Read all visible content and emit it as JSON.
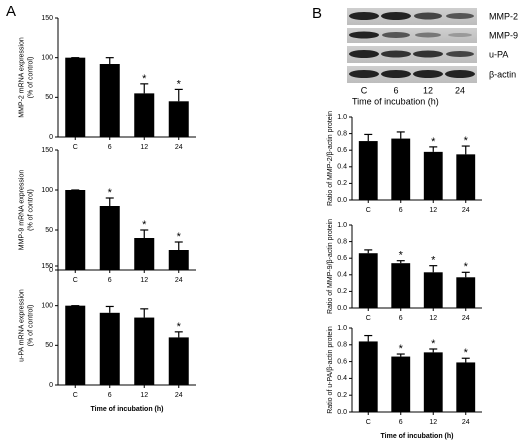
{
  "panel_labels": [
    "A",
    "B"
  ],
  "blot": {
    "bands": [
      "MMP-2",
      "MMP-9",
      "u-PA",
      "β-actin"
    ],
    "lanes": [
      "C",
      "6",
      "12",
      "24"
    ],
    "xlabel": "Time of incubation (h)"
  },
  "chart_data": [
    {
      "type": "bar",
      "ylabel": [
        "MMP-2 mRNA expression",
        "(% of control)"
      ],
      "categories": [
        "C",
        "6",
        "12",
        "24"
      ],
      "values": [
        100,
        92,
        55,
        45
      ],
      "errors": [
        0,
        8,
        12,
        15
      ],
      "annotations": [
        null,
        null,
        "*",
        "*"
      ],
      "color": "#000000",
      "ylim": [
        0,
        150
      ],
      "yticks": [
        0,
        50,
        100,
        150
      ]
    },
    {
      "type": "bar",
      "ylabel": [
        "MMP-9 mRNA expression",
        "(% of control)"
      ],
      "categories": [
        "C",
        "6",
        "12",
        "24"
      ],
      "values": [
        100,
        80,
        40,
        25
      ],
      "errors": [
        0,
        10,
        10,
        10
      ],
      "annotations": [
        null,
        "*",
        "*",
        "*"
      ],
      "color": "#000000",
      "ylim": [
        0,
        150
      ],
      "yticks": [
        0,
        50,
        100,
        150
      ]
    },
    {
      "type": "bar",
      "ylabel": [
        "u-PA mRNA expression",
        "(% of control)"
      ],
      "categories": [
        "C",
        "6",
        "12",
        "24"
      ],
      "xlabel": "Time of incubation (h)",
      "values": [
        100,
        91,
        85,
        60
      ],
      "errors": [
        0,
        8,
        11,
        7
      ],
      "annotations": [
        null,
        null,
        null,
        "*"
      ],
      "color": "#000000",
      "ylim": [
        0,
        150
      ],
      "yticks": [
        0,
        50,
        100,
        150
      ]
    },
    {
      "type": "bar",
      "ylabel": [
        "Ratio of MMP-2/β-actin protein"
      ],
      "categories": [
        "C",
        "6",
        "12",
        "24"
      ],
      "values": [
        0.71,
        0.74,
        0.58,
        0.55
      ],
      "errors": [
        0.08,
        0.08,
        0.06,
        0.1
      ],
      "annotations": [
        null,
        null,
        "*",
        "*"
      ],
      "color": "#000000",
      "ylim": [
        0,
        1
      ],
      "yticks": [
        {
          "value": 0,
          "label": "0.0"
        },
        0.2,
        0.4,
        0.6,
        0.8,
        {
          "value": 1,
          "label": "1.0"
        }
      ]
    },
    {
      "type": "bar",
      "ylabel": [
        "Ratio of MMP-9/β-actin protein"
      ],
      "categories": [
        "C",
        "6",
        "12",
        "24"
      ],
      "values": [
        0.66,
        0.54,
        0.43,
        0.37
      ],
      "errors": [
        0.04,
        0.03,
        0.08,
        0.06
      ],
      "annotations": [
        null,
        "*",
        "*",
        "*"
      ],
      "color": "#000000",
      "ylim": [
        0,
        1
      ],
      "yticks": [
        {
          "value": 0,
          "label": "0.0"
        },
        0.2,
        0.4,
        0.6,
        0.8,
        {
          "value": 1,
          "label": "1.0"
        }
      ]
    },
    {
      "type": "bar",
      "ylabel": [
        "Ratio of u-PA/β-actin protein"
      ],
      "categories": [
        "C",
        "6",
        "12",
        "24"
      ],
      "xlabel": "Time of incubation (h)",
      "values": [
        0.84,
        0.66,
        0.71,
        0.59
      ],
      "errors": [
        0.07,
        0.03,
        0.04,
        0.05
      ],
      "annotations": [
        null,
        "*",
        "*",
        "*"
      ],
      "color": "#000000",
      "ylim": [
        0,
        1
      ],
      "yticks": [
        {
          "value": 0,
          "label": "0.0"
        },
        0.2,
        0.4,
        0.6,
        0.8,
        {
          "value": 1,
          "label": "1.0"
        }
      ]
    }
  ]
}
